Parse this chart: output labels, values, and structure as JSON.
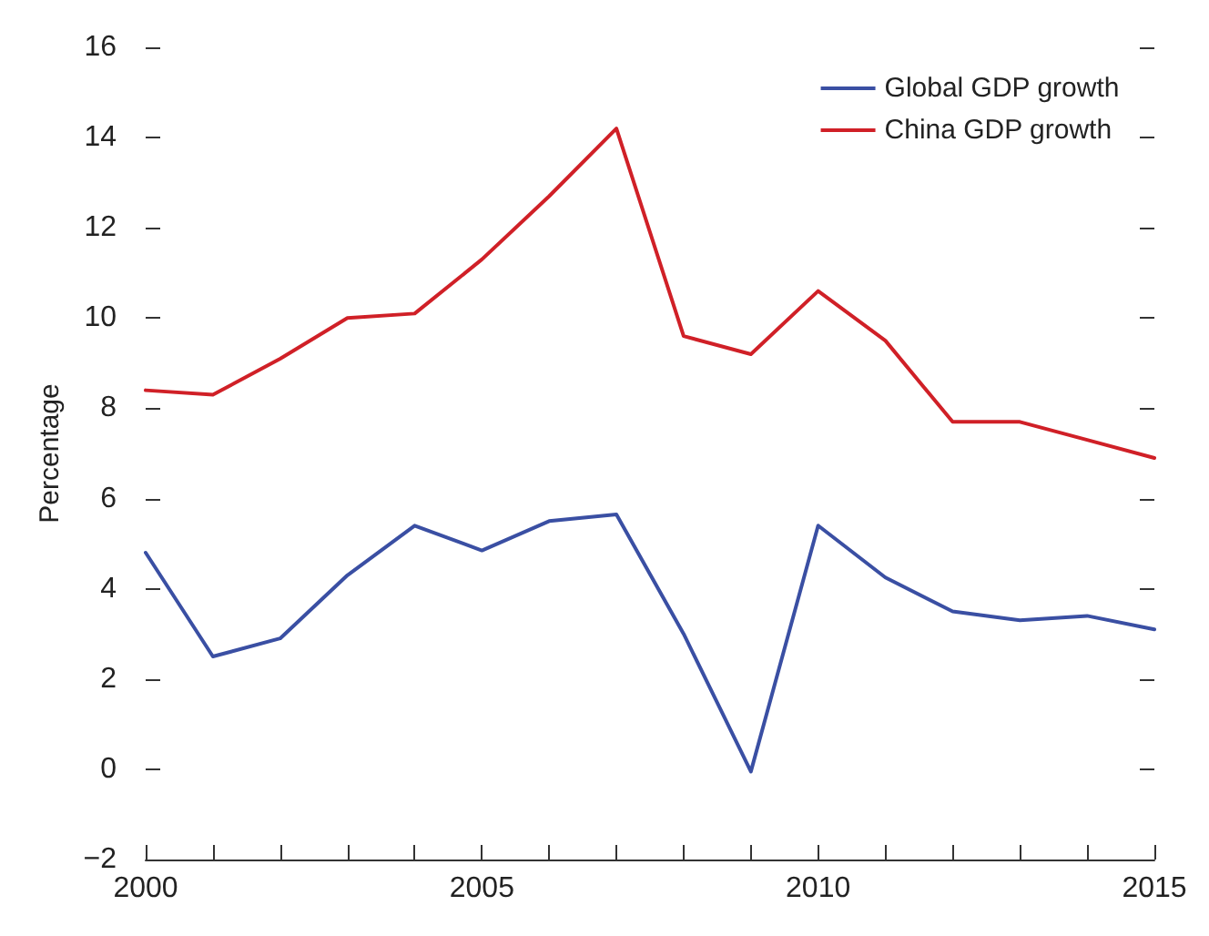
{
  "chart_data": {
    "type": "line",
    "ylabel": "Percentage",
    "x": [
      2000,
      2001,
      2002,
      2003,
      2004,
      2005,
      2006,
      2007,
      2008,
      2009,
      2010,
      2011,
      2012,
      2013,
      2014,
      2015
    ],
    "series": [
      {
        "name": "Global GDP growth",
        "color": "#3a4fa3",
        "values": [
          4.8,
          2.5,
          2.9,
          4.3,
          5.4,
          4.85,
          5.5,
          5.65,
          3.0,
          -0.05,
          5.4,
          4.25,
          3.5,
          3.3,
          3.4,
          3.1
        ]
      },
      {
        "name": "China GDP growth",
        "color": "#d02027",
        "values": [
          8.4,
          8.3,
          9.1,
          10.0,
          10.1,
          11.3,
          12.7,
          14.2,
          9.6,
          9.2,
          10.6,
          9.5,
          7.7,
          7.7,
          7.3,
          6.9
        ]
      }
    ],
    "xlim": [
      2000,
      2015
    ],
    "xticks": [
      2000,
      {
        "value": 2001,
        "label": null
      },
      {
        "value": 2002,
        "label": null
      },
      {
        "value": 2003,
        "label": null
      },
      {
        "value": 2004,
        "label": null
      },
      2005,
      {
        "value": 2006,
        "label": null
      },
      {
        "value": 2007,
        "label": null
      },
      {
        "value": 2008,
        "label": null
      },
      {
        "value": 2009,
        "label": null
      },
      2010,
      {
        "value": 2011,
        "label": null
      },
      {
        "value": 2012,
        "label": null
      },
      {
        "value": 2013,
        "label": null
      },
      {
        "value": 2014,
        "label": null
      },
      2015
    ],
    "ylim": [
      -2,
      16
    ],
    "yticks": [
      {
        "value": -2,
        "label": "−2"
      },
      0,
      2,
      4,
      6,
      8,
      10,
      12,
      14,
      16
    ],
    "legend": "top right",
    "grid": false,
    "marker": "none",
    "line_style": "solid"
  }
}
